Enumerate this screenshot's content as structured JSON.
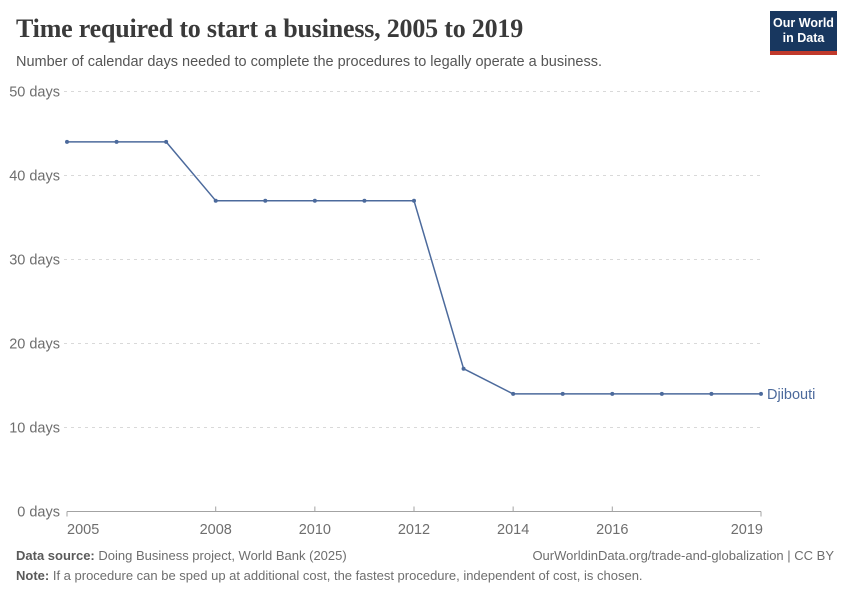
{
  "header": {
    "title": "Time required to start a business, 2005 to 2019",
    "subtitle": "Number of calendar days needed to complete the procedures to legally operate a business.",
    "logo_line1": "Our World",
    "logo_line2": "in Data"
  },
  "chart_data": {
    "type": "line",
    "title": "Time required to start a business, 2005 to 2019",
    "xlabel": "",
    "ylabel": "",
    "x": [
      2005,
      2006,
      2007,
      2008,
      2009,
      2010,
      2011,
      2012,
      2013,
      2014,
      2015,
      2016,
      2017,
      2018,
      2019
    ],
    "series": [
      {
        "name": "Djibouti",
        "color": "#4c6a9c",
        "values": [
          44,
          44,
          44,
          37,
          37,
          37,
          37,
          37,
          17,
          14,
          14,
          14,
          14,
          14,
          14
        ]
      }
    ],
    "xlim": [
      2005,
      2019
    ],
    "ylim": [
      0,
      50
    ],
    "x_ticks": [
      2005,
      2008,
      2010,
      2012,
      2014,
      2016,
      2019
    ],
    "y_ticks": [
      0,
      10,
      20,
      30,
      40,
      50
    ],
    "y_tick_suffix": " days",
    "grid": "horizontal-dashed",
    "legend_position": "end-of-line-label",
    "entity_label": "Djibouti",
    "colors": {
      "gridline": "#d9d9d9",
      "axis": "#a3a3a3",
      "tick_label": "#6e6e6e"
    }
  },
  "footer": {
    "datasource_label": "Data source:",
    "datasource_text": " Doing Business project, World Bank (2025)",
    "link_text": "OurWorldinData.org/trade-and-globalization | CC BY",
    "note_label": "Note:",
    "note_text": " If a procedure can be sped up at additional cost, the fastest procedure, independent of cost, is chosen."
  }
}
